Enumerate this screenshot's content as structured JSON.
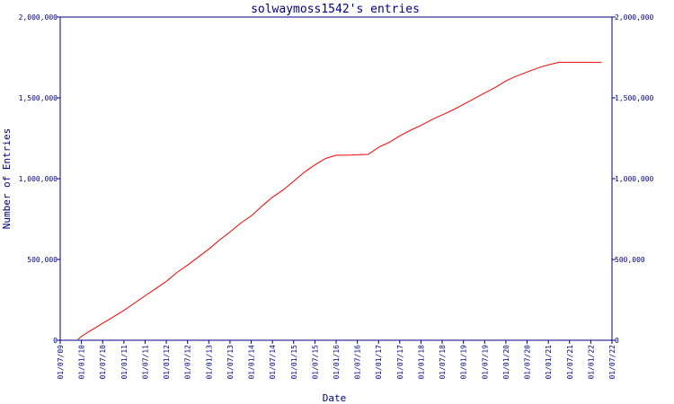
{
  "chart_data": {
    "type": "line",
    "title": "solwaymoss1542's entries",
    "xlabel": "Date",
    "ylabel": "Number of Entries",
    "xlim": [
      "2009-07-01",
      "2022-07-01"
    ],
    "ylim": [
      0,
      2000000
    ],
    "x_ticks": [
      "01/07/09",
      "01/01/10",
      "01/07/10",
      "01/01/11",
      "01/07/11",
      "01/01/12",
      "01/07/12",
      "01/01/13",
      "01/07/13",
      "01/01/14",
      "01/07/14",
      "01/01/15",
      "01/07/15",
      "01/01/16",
      "01/07/16",
      "01/01/17",
      "01/07/17",
      "01/01/18",
      "01/07/18",
      "01/01/19",
      "01/07/19",
      "01/01/20",
      "01/07/20",
      "01/01/21",
      "01/07/21",
      "01/01/22",
      "01/07/22"
    ],
    "y_ticks": [
      {
        "value": 0,
        "label": "0"
      },
      {
        "value": 500000,
        "label": "500,000"
      },
      {
        "value": 1000000,
        "label": "1,000,000"
      },
      {
        "value": 1500000,
        "label": "1,500,000"
      },
      {
        "value": 2000000,
        "label": "2,000,000"
      }
    ],
    "grid": false,
    "series": [
      {
        "color": "#ff0000",
        "x": [
          "2009-12-01",
          "2010-01-01",
          "2010-04-01",
          "2010-07-01",
          "2010-10-01",
          "2011-01-01",
          "2011-04-01",
          "2011-07-01",
          "2011-10-01",
          "2012-01-01",
          "2012-04-01",
          "2012-07-01",
          "2012-10-01",
          "2013-01-01",
          "2013-04-01",
          "2013-07-01",
          "2013-10-01",
          "2014-01-01",
          "2014-04-01",
          "2014-07-01",
          "2014-10-01",
          "2015-01-01",
          "2015-04-01",
          "2015-07-01",
          "2015-10-01",
          "2016-01-01",
          "2016-04-01",
          "2016-07-01",
          "2016-10-01",
          "2017-01-01",
          "2017-04-01",
          "2017-07-01",
          "2017-10-01",
          "2018-01-01",
          "2018-04-01",
          "2018-07-01",
          "2018-10-01",
          "2019-01-01",
          "2019-04-01",
          "2019-07-01",
          "2019-10-01",
          "2020-01-01",
          "2020-04-01",
          "2020-07-01",
          "2020-10-01",
          "2021-01-01",
          "2021-04-01",
          "2021-07-01",
          "2021-10-01",
          "2022-01-01",
          "2022-04-01"
        ],
        "y": [
          5000,
          25000,
          65000,
          105000,
          145000,
          185000,
          230000,
          275000,
          320000,
          365000,
          420000,
          465000,
          515000,
          565000,
          620000,
          670000,
          725000,
          770000,
          830000,
          885000,
          930000,
          985000,
          1040000,
          1085000,
          1125000,
          1145000,
          1145000,
          1148000,
          1150000,
          1195000,
          1225000,
          1265000,
          1300000,
          1330000,
          1365000,
          1395000,
          1425000,
          1460000,
          1495000,
          1530000,
          1565000,
          1605000,
          1635000,
          1660000,
          1685000,
          1705000,
          1720000,
          1720000,
          1720000,
          1720000,
          1720000
        ]
      }
    ]
  }
}
